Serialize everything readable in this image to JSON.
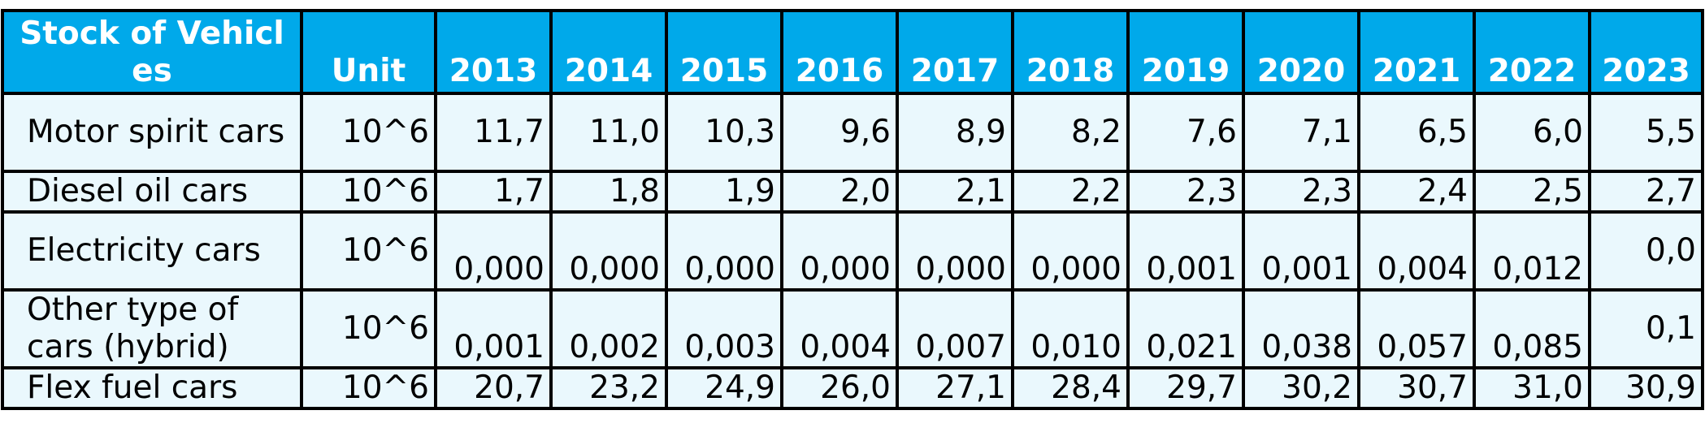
{
  "header": {
    "title": "Stock of Vehicles",
    "unit": "Unit",
    "years": [
      "2013",
      "2014",
      "2015",
      "2016",
      "2017",
      "2018",
      "2019",
      "2020",
      "2021",
      "2022",
      "2023"
    ]
  },
  "rows": [
    {
      "label": "Motor spirit cars",
      "unit": "10^6",
      "values": [
        "11,7",
        "11,0",
        "10,3",
        "9,6",
        "8,9",
        "8,2",
        "7,6",
        "7,1",
        "6,5",
        "6,0",
        "5,5"
      ]
    },
    {
      "label": "Diesel oil cars",
      "unit": "10^6",
      "values": [
        "1,7",
        "1,8",
        "1,9",
        "2,0",
        "2,1",
        "2,2",
        "2,3",
        "2,3",
        "2,4",
        "2,5",
        "2,7"
      ]
    },
    {
      "label": "Electricity cars",
      "unit": "10^6",
      "values": [
        "0,000",
        "0,000",
        "0,000",
        "0,000",
        "0,000",
        "0,000",
        "0,001",
        "0,001",
        "0,004",
        "0,012",
        "0,0"
      ]
    },
    {
      "label": "Other type of cars (hybrid)",
      "unit": "10^6",
      "values": [
        "0,001",
        "0,002",
        "0,003",
        "0,004",
        "0,007",
        "0,010",
        "0,021",
        "0,038",
        "0,057",
        "0,085",
        "0,1"
      ]
    },
    {
      "label": "Flex fuel cars",
      "unit": "10^6",
      "values": [
        "20,7",
        "23,2",
        "24,9",
        "26,0",
        "27,1",
        "28,4",
        "29,7",
        "30,2",
        "30,7",
        "31,0",
        "30,9"
      ]
    }
  ]
}
